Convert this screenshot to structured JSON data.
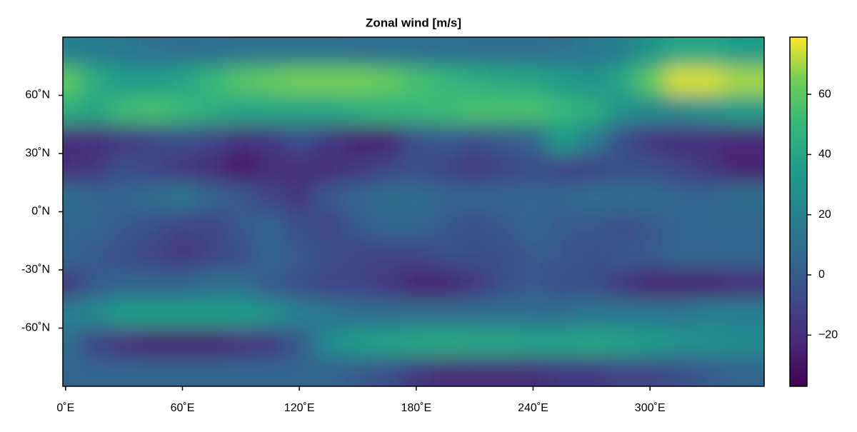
{
  "chart_data": {
    "type": "heatmap",
    "title": "Zonal wind [m/s]",
    "colormap": [
      "#440154",
      "#482878",
      "#3e4989",
      "#31688e",
      "#26828e",
      "#1f9e89",
      "#35b779",
      "#6ece58",
      "#fde725"
    ],
    "x": [
      0,
      15,
      30,
      45,
      60,
      75,
      90,
      105,
      120,
      135,
      150,
      165,
      180,
      195,
      210,
      225,
      240,
      255,
      270,
      285,
      300,
      315,
      330,
      345
    ],
    "y": [
      82.5,
      67.5,
      52.5,
      37.5,
      22.5,
      7.5,
      -7.5,
      -22.5,
      -37.5,
      -52.5,
      -67.5,
      -82.5
    ],
    "values": [
      [
        20,
        18,
        15,
        12,
        10,
        10,
        12,
        12,
        12,
        12,
        10,
        10,
        10,
        10,
        10,
        10,
        10,
        12,
        15,
        20,
        30,
        40,
        40,
        35
      ],
      [
        60,
        45,
        35,
        35,
        40,
        50,
        58,
        62,
        65,
        65,
        65,
        62,
        55,
        50,
        45,
        42,
        40,
        35,
        30,
        40,
        60,
        75,
        75,
        70
      ],
      [
        45,
        40,
        52,
        55,
        50,
        45,
        40,
        40,
        40,
        40,
        45,
        48,
        50,
        52,
        55,
        55,
        55,
        50,
        45,
        30,
        25,
        25,
        30,
        35
      ],
      [
        -20,
        -20,
        -15,
        -10,
        -5,
        -10,
        -18,
        -15,
        -5,
        -15,
        -25,
        -25,
        -5,
        0,
        -5,
        0,
        5,
        35,
        20,
        -5,
        -15,
        -20,
        -20,
        -22
      ],
      [
        -20,
        -15,
        -5,
        -10,
        -15,
        -20,
        -28,
        -20,
        -20,
        -20,
        -15,
        -10,
        -5,
        -10,
        -15,
        -10,
        -5,
        -10,
        -10,
        -5,
        -5,
        -10,
        -15,
        -25
      ],
      [
        10,
        5,
        5,
        10,
        15,
        5,
        0,
        -10,
        -15,
        0,
        5,
        10,
        10,
        5,
        5,
        5,
        5,
        5,
        10,
        10,
        10,
        5,
        5,
        10
      ],
      [
        5,
        5,
        0,
        -5,
        -10,
        -10,
        0,
        5,
        -5,
        -10,
        0,
        5,
        5,
        0,
        -5,
        0,
        5,
        0,
        0,
        -5,
        0,
        5,
        5,
        5
      ],
      [
        5,
        0,
        -5,
        -10,
        -15,
        -10,
        -5,
        5,
        0,
        -5,
        -10,
        -10,
        -10,
        -5,
        -5,
        -5,
        0,
        0,
        -5,
        0,
        0,
        5,
        5,
        5
      ],
      [
        -15,
        0,
        5,
        5,
        5,
        10,
        10,
        0,
        -5,
        -10,
        -10,
        -15,
        -25,
        -25,
        -15,
        -5,
        0,
        -5,
        -5,
        -15,
        -25,
        -25,
        -25,
        -20
      ],
      [
        20,
        25,
        35,
        35,
        35,
        35,
        35,
        30,
        20,
        15,
        10,
        10,
        10,
        10,
        10,
        10,
        10,
        10,
        15,
        15,
        15,
        15,
        20,
        20
      ],
      [
        10,
        -10,
        -20,
        -25,
        -25,
        -25,
        -20,
        -15,
        0,
        25,
        35,
        38,
        40,
        42,
        40,
        40,
        38,
        38,
        40,
        38,
        35,
        30,
        28,
        25
      ],
      [
        5,
        5,
        5,
        5,
        5,
        5,
        5,
        5,
        5,
        5,
        0,
        -5,
        -15,
        -20,
        -20,
        -20,
        -20,
        -15,
        -15,
        -10,
        -10,
        -5,
        0,
        5
      ]
    ],
    "xlim": [
      -1.4,
      358.6
    ],
    "ylim": [
      -90,
      90
    ],
    "clim": [
      -37,
      79
    ],
    "xticks": [
      {
        "value": 0,
        "label": "0˚E"
      },
      {
        "value": 60,
        "label": "60˚E"
      },
      {
        "value": 120,
        "label": "120˚E"
      },
      {
        "value": 180,
        "label": "180˚E"
      },
      {
        "value": 240,
        "label": "240˚E"
      },
      {
        "value": 300,
        "label": "300˚E"
      }
    ],
    "yticks": [
      {
        "value": -60,
        "label": "-60˚N"
      },
      {
        "value": -30,
        "label": "-30˚N"
      },
      {
        "value": 0,
        "label": "0˚N"
      },
      {
        "value": 30,
        "label": "30˚N"
      },
      {
        "value": 60,
        "label": "60˚N"
      }
    ],
    "cticks": [
      {
        "value": -20,
        "label": "−20"
      },
      0,
      20,
      40,
      60
    ]
  }
}
